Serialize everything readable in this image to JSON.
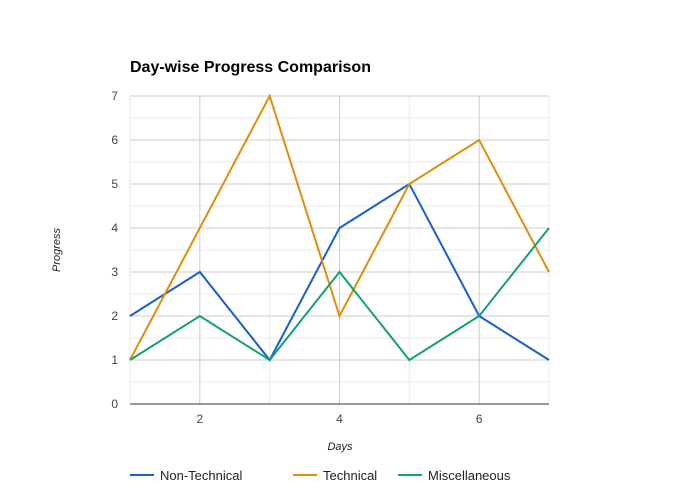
{
  "chart_data": {
    "type": "line",
    "title": "Day-wise Progress Comparison",
    "xlabel": "Days",
    "ylabel": "Progress",
    "x": [
      1,
      2,
      3,
      4,
      5,
      6,
      7
    ],
    "xlim": [
      1,
      7
    ],
    "ylim": [
      0,
      7
    ],
    "x_ticks": [
      2,
      4,
      6
    ],
    "y_ticks": [
      0,
      1,
      2,
      3,
      4,
      5,
      6,
      7
    ],
    "grid": true,
    "legend_position": "bottom",
    "series": [
      {
        "name": "Non-Technical",
        "color": "#1a5fcf",
        "values": [
          2,
          3,
          1,
          4,
          5,
          2,
          1
        ]
      },
      {
        "name": "Technical",
        "color": "#e08e0b",
        "values": [
          1,
          4,
          7,
          2,
          5,
          6,
          3
        ]
      },
      {
        "name": "Miscellaneous",
        "color": "#13a078",
        "values": [
          1,
          2,
          1,
          3,
          1,
          2,
          4
        ]
      }
    ]
  }
}
